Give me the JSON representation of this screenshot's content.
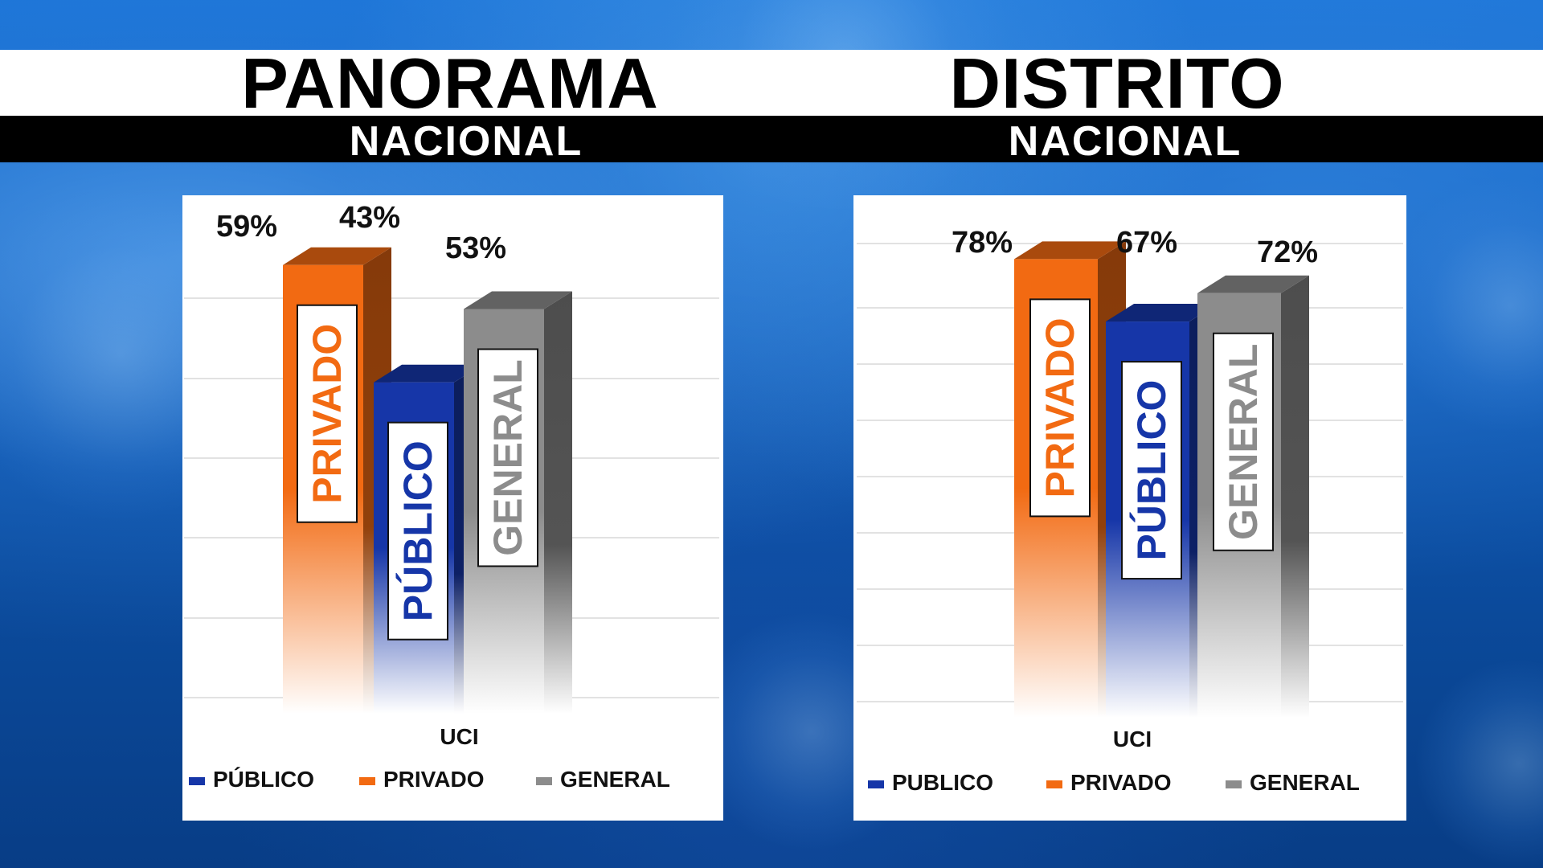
{
  "header": {
    "left_title": "PANORAMA",
    "left_subtitle": "NACIONAL",
    "right_title": "DISTRITO",
    "right_subtitle": "NACIONAL"
  },
  "colors": {
    "privado": "#f26a12",
    "publico": "#1636a8",
    "general": "#8c8c8c"
  },
  "chart_data": [
    {
      "type": "bar",
      "categories": [
        "UCI"
      ],
      "series": [
        {
          "name": "PRIVADO",
          "values": [
            59
          ],
          "label": "59%",
          "bar_text": "PRIVADO"
        },
        {
          "name": "PÚBLICO",
          "values": [
            43
          ],
          "label": "43%",
          "bar_text": "PÚBLICO"
        },
        {
          "name": "GENERAL",
          "values": [
            53
          ],
          "label": "53%",
          "bar_text": "GENERAL"
        }
      ],
      "legend": [
        "PÚBLICO",
        "PRIVADO",
        "GENERAL"
      ],
      "legend_colors": [
        "#1636a8",
        "#f26a12",
        "#8c8c8c"
      ],
      "xlabel": "UCI",
      "ylim": [
        0,
        65
      ],
      "grid": true
    },
    {
      "type": "bar",
      "categories": [
        "UCI"
      ],
      "series": [
        {
          "name": "PRIVADO",
          "values": [
            78
          ],
          "label": "78%",
          "bar_text": "PRIVADO"
        },
        {
          "name": "PUBLICO",
          "values": [
            67
          ],
          "label": "67%",
          "bar_text": "PÚBLICO"
        },
        {
          "name": "GENERAL",
          "values": [
            72
          ],
          "label": "72%",
          "bar_text": "GENERAL"
        }
      ],
      "legend": [
        "PUBLICO",
        "PRIVADO",
        "GENERAL"
      ],
      "legend_colors": [
        "#1636a8",
        "#f26a12",
        "#8c8c8c"
      ],
      "xlabel": "UCI",
      "ylim": [
        0,
        85
      ],
      "grid": true
    }
  ]
}
